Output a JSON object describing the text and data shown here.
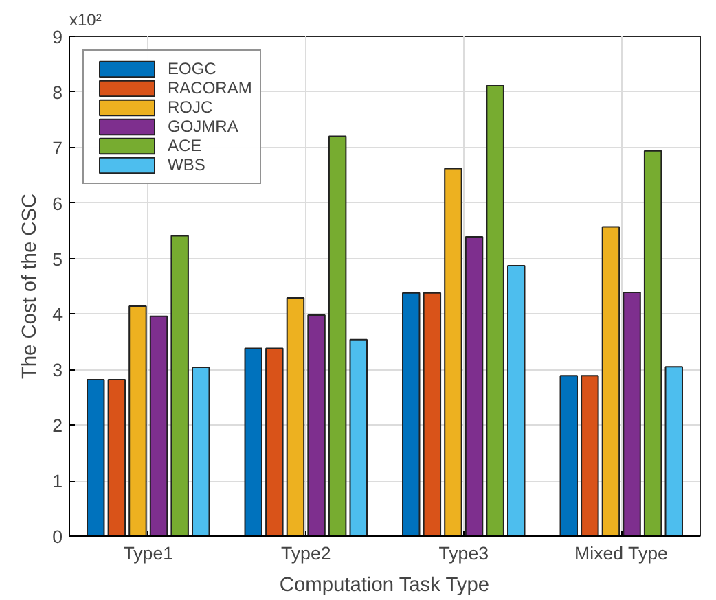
{
  "chart_data": {
    "type": "bar",
    "xlabel": "Computation Task Type",
    "ylabel": "The Cost of the CSC",
    "annotations": [
      "x10²"
    ],
    "categories": [
      "Type1",
      "Type2",
      "Type3",
      "Mixed Type"
    ],
    "series": [
      {
        "name": "EOGC",
        "color": "#0072bd",
        "values": [
          2.82,
          3.38,
          4.38,
          2.89
        ]
      },
      {
        "name": "RACORAM",
        "color": "#d95319",
        "values": [
          2.82,
          3.38,
          4.38,
          2.89
        ]
      },
      {
        "name": "ROJC",
        "color": "#edb120",
        "values": [
          4.14,
          4.29,
          6.62,
          5.57
        ]
      },
      {
        "name": "GOJMRA",
        "color": "#7e2f8e",
        "values": [
          3.96,
          3.98,
          5.39,
          4.39
        ]
      },
      {
        "name": "ACE",
        "color": "#77ac30",
        "values": [
          5.41,
          7.2,
          8.11,
          6.94
        ]
      },
      {
        "name": "WBS",
        "color": "#4dbeee",
        "values": [
          3.04,
          3.54,
          4.87,
          3.05
        ]
      }
    ],
    "ylim": [
      0,
      9
    ],
    "yticks": [
      0,
      1,
      2,
      3,
      4,
      5,
      6,
      7,
      8,
      9
    ],
    "grid": true,
    "legend": "top left"
  }
}
